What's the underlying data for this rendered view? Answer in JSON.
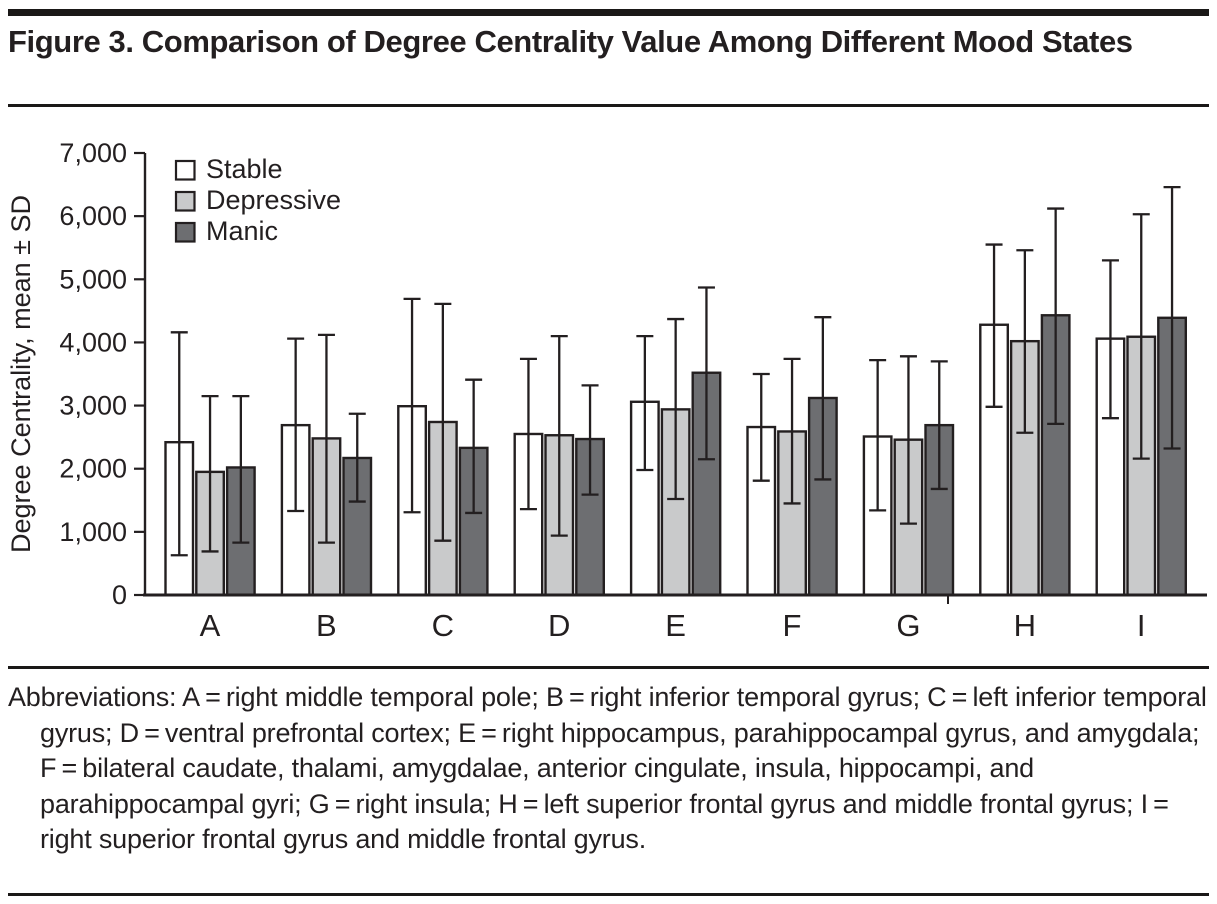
{
  "page": {
    "title": "Figure 3. Comparison of Degree Centrality Value Among Different Mood States",
    "abbreviations": "Abbreviations: A = right middle temporal pole; B = right inferior temporal gyrus; C = left inferior temporal gyrus; D = ventral prefrontal cortex; E = right hippocampus, parahippocampal gyrus, and amygdala; F = bilateral caudate, thalami, amygdalae, anterior cingulate, insula, hippocampi, and parahippocampal gyri; G = right insula; H = left superior frontal gyrus and middle frontal gyrus; I = right superior frontal gyrus and middle frontal gyrus.",
    "colors": {
      "ink": "#231f20",
      "rule": "#1a1817",
      "stable_fill": "#ffffff",
      "depressive_fill": "#c9cacb",
      "manic_fill": "#6d6e71"
    }
  },
  "chart_data": {
    "type": "bar",
    "title": "",
    "xlabel": "",
    "ylabel": "Degree Centrality, mean ± SD",
    "ylim": [
      0,
      7000
    ],
    "ytick_step": 1000,
    "yticks": [
      "0",
      "1,000",
      "2,000",
      "3,000",
      "4,000",
      "5,000",
      "6,000",
      "7,000"
    ],
    "grid": false,
    "error_bars": "± SD, shown above and below each bar mean",
    "legend_position": "top-left inside plot",
    "categories": [
      "A",
      "B",
      "C",
      "D",
      "E",
      "F",
      "G",
      "H",
      "I"
    ],
    "series": [
      {
        "name": "Stable",
        "fill": "#ffffff",
        "values": [
          2420,
          2690,
          2990,
          2550,
          3060,
          2660,
          2510,
          4280,
          4060
        ],
        "err_high": [
          4160,
          4060,
          4690,
          3740,
          4100,
          3500,
          3720,
          5550,
          5300
        ],
        "err_low": [
          630,
          1330,
          1310,
          1360,
          1980,
          1810,
          1340,
          2980,
          2800
        ]
      },
      {
        "name": "Depressive",
        "fill": "#c9cacb",
        "values": [
          1950,
          2480,
          2740,
          2530,
          2940,
          2590,
          2460,
          4020,
          4090
        ],
        "err_high": [
          3150,
          4120,
          4610,
          4100,
          4370,
          3740,
          3780,
          5460,
          6030
        ],
        "err_low": [
          690,
          830,
          860,
          940,
          1520,
          1450,
          1130,
          2570,
          2160
        ]
      },
      {
        "name": "Manic",
        "fill": "#6d6e71",
        "values": [
          2020,
          2170,
          2330,
          2470,
          3520,
          3120,
          2690,
          4430,
          4390
        ],
        "err_high": [
          3150,
          2870,
          3410,
          3320,
          4870,
          4400,
          3700,
          6120,
          6460
        ],
        "err_low": [
          830,
          1480,
          1300,
          1590,
          2150,
          1830,
          1680,
          2710,
          2320
        ]
      }
    ]
  }
}
